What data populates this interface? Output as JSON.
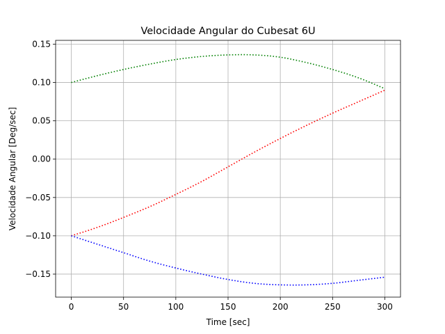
{
  "chart_data": {
    "type": "line",
    "title": "Velocidade Angular do Cubesat 6U",
    "xlabel": "Time [sec]",
    "ylabel": "Velocidade Angular [Deg/sec]",
    "xlim": [
      -15,
      315
    ],
    "ylim": [
      -0.18,
      0.155
    ],
    "xticks": [
      0,
      50,
      100,
      150,
      200,
      250,
      300
    ],
    "xtick_labels": [
      "0",
      "50",
      "100",
      "150",
      "200",
      "250",
      "300"
    ],
    "yticks": [
      -0.15,
      -0.1,
      -0.05,
      0.0,
      0.05,
      0.1,
      0.15
    ],
    "ytick_labels": [
      "−0.15",
      "−0.10",
      "−0.05",
      "0.00",
      "0.05",
      "0.10",
      "0.15"
    ],
    "grid": true,
    "line_style": "dotted",
    "series": [
      {
        "color": "#008000",
        "x": [
          0,
          25,
          50,
          75,
          100,
          125,
          150,
          175,
          200,
          225,
          250,
          275,
          300
        ],
        "y": [
          0.1,
          0.109,
          0.117,
          0.124,
          0.13,
          0.134,
          0.136,
          0.136,
          0.133,
          0.126,
          0.117,
          0.106,
          0.092
        ]
      },
      {
        "color": "#ff0000",
        "x": [
          0,
          25,
          50,
          75,
          100,
          125,
          150,
          175,
          200,
          225,
          250,
          275,
          300
        ],
        "y": [
          -0.1,
          -0.089,
          -0.076,
          -0.062,
          -0.046,
          -0.029,
          -0.01,
          0.009,
          0.027,
          0.044,
          0.06,
          0.075,
          0.09
        ]
      },
      {
        "color": "#0000ff",
        "x": [
          0,
          25,
          50,
          75,
          100,
          125,
          150,
          175,
          200,
          225,
          250,
          275,
          300
        ],
        "y": [
          -0.1,
          -0.111,
          -0.122,
          -0.133,
          -0.142,
          -0.15,
          -0.157,
          -0.162,
          -0.164,
          -0.164,
          -0.162,
          -0.158,
          -0.154
        ]
      }
    ]
  }
}
